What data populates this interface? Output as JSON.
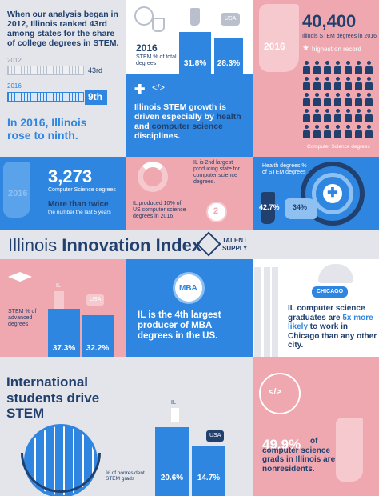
{
  "colors": {
    "blue": "#2f86e0",
    "navy": "#21406e",
    "pink": "#f0a8b0",
    "lightgray": "#e4e5ea",
    "white": "#ffffff"
  },
  "intro": {
    "text": "When our analysis began in 2012, Illinois ranked 43rd among states for the share of college degrees in STEM.",
    "year1": "2012",
    "rank1": "43rd",
    "year2": "2016",
    "rank2": "9th",
    "headline": "In 2016, Illinois rose to ninth."
  },
  "stem_share": {
    "year": "2016",
    "label": "STEM % of total degrees",
    "il_value": "31.8%",
    "usa_value": "28.3%",
    "usa_tag": "USA",
    "il_pct": 31.8,
    "usa_pct": 28.3
  },
  "stem_degrees": {
    "big_number": "40,400",
    "subtitle": "Illinois STEM degrees in 2016",
    "star_note": "highest on record",
    "year_tag": "2016",
    "cs_label": "Computer Science degrees"
  },
  "growth": {
    "text_start": "Illinois STEM growth is driven especially by ",
    "highlight1": "health",
    "text_mid": " and ",
    "highlight2": "computer science",
    "text_end": " disciplines."
  },
  "cs_count": {
    "year": "2016",
    "number": "3,273",
    "label": "Computer Science degrees",
    "note_bold": "More than twice",
    "note": "the number the last 5 years"
  },
  "cs_share": {
    "text": "IL produced 10% of US computer science degrees in 2016.",
    "rank_text": "IL is 2nd largest producing state for computer science degrees.",
    "rank_badge": "2"
  },
  "health": {
    "label": "Health degrees % of STEM degrees",
    "il_value": "42.7%",
    "usa_value": "34%"
  },
  "banner": {
    "title_light": "Illinois",
    "title_bold": "Innovation Index",
    "brand_line1": "TALENT",
    "brand_line2": "SUPPLY"
  },
  "advanced": {
    "label": "STEM % of advanced degrees",
    "il_value": "37.3%",
    "usa_value": "32.2%",
    "il_tag": "IL",
    "usa_tag": "USA",
    "il_pct": 37.3,
    "usa_pct": 32.2
  },
  "mba": {
    "badge": "MBA",
    "text": "IL is the 4th largest producer of MBA degrees in the US."
  },
  "chicago": {
    "tag": "CHICAGO",
    "text_start": "IL computer science graduates are ",
    "highlight": "5x more likely",
    "text_end": " to work in Chicago than any other city."
  },
  "international": {
    "headline": "International students drive STEM",
    "label": "% of nonresident STEM grads",
    "il_value": "20.6%",
    "usa_value": "14.7%",
    "il_tag": "IL",
    "usa_tag": "USA",
    "il_pct": 20.6,
    "usa_pct": 14.7
  },
  "nonresident": {
    "number": "49.9%",
    "text": "of computer science grads in Illinois are nonresidents."
  }
}
